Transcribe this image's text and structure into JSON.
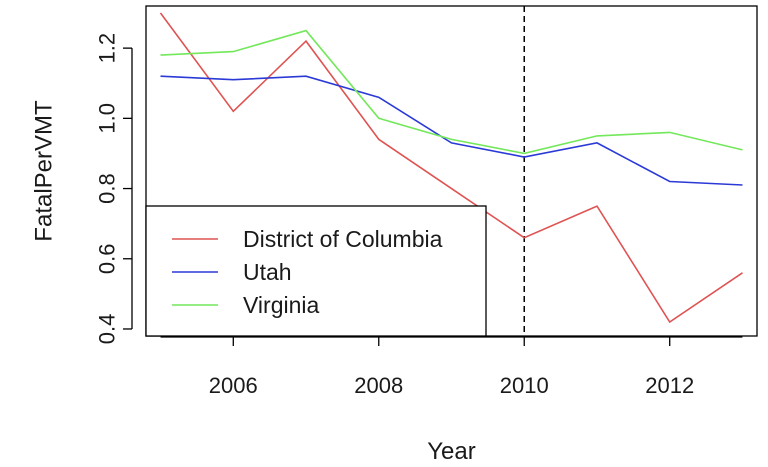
{
  "chart_data": {
    "type": "line",
    "title": "",
    "xlabel": "Year",
    "ylabel": "FatalPerVMT",
    "xlim": [
      2004.8,
      2013.2
    ],
    "ylim": [
      0.38,
      1.32
    ],
    "x_ticks": [
      2006,
      2008,
      2010,
      2012
    ],
    "x_tick_labels": [
      "2006",
      "2008",
      "2010",
      "2012"
    ],
    "y_ticks": [
      0.4,
      0.6,
      0.8,
      1.0,
      1.2
    ],
    "y_tick_labels": [
      "0.4",
      "0.6",
      "0.8",
      "1.0",
      "1.2"
    ],
    "x": [
      2005,
      2006,
      2007,
      2008,
      2009,
      2010,
      2011,
      2012,
      2013
    ],
    "series": [
      {
        "name": "District of Columbia",
        "color": "#df5353",
        "values": [
          1.3,
          1.02,
          1.22,
          0.94,
          0.8,
          0.66,
          0.75,
          0.42,
          0.56
        ]
      },
      {
        "name": "Utah",
        "color": "#2b3ad6",
        "values": [
          1.12,
          1.11,
          1.12,
          1.06,
          0.93,
          0.89,
          0.93,
          0.82,
          0.81
        ]
      },
      {
        "name": "Virginia",
        "color": "#72e85a",
        "values": [
          1.18,
          1.19,
          1.25,
          1.0,
          0.94,
          0.9,
          0.95,
          0.96,
          0.91
        ]
      }
    ],
    "reference_line": {
      "x": 2010,
      "style": "dashed",
      "color": "#000000"
    },
    "legend": {
      "position": "bottom-left"
    },
    "grid": false
  }
}
